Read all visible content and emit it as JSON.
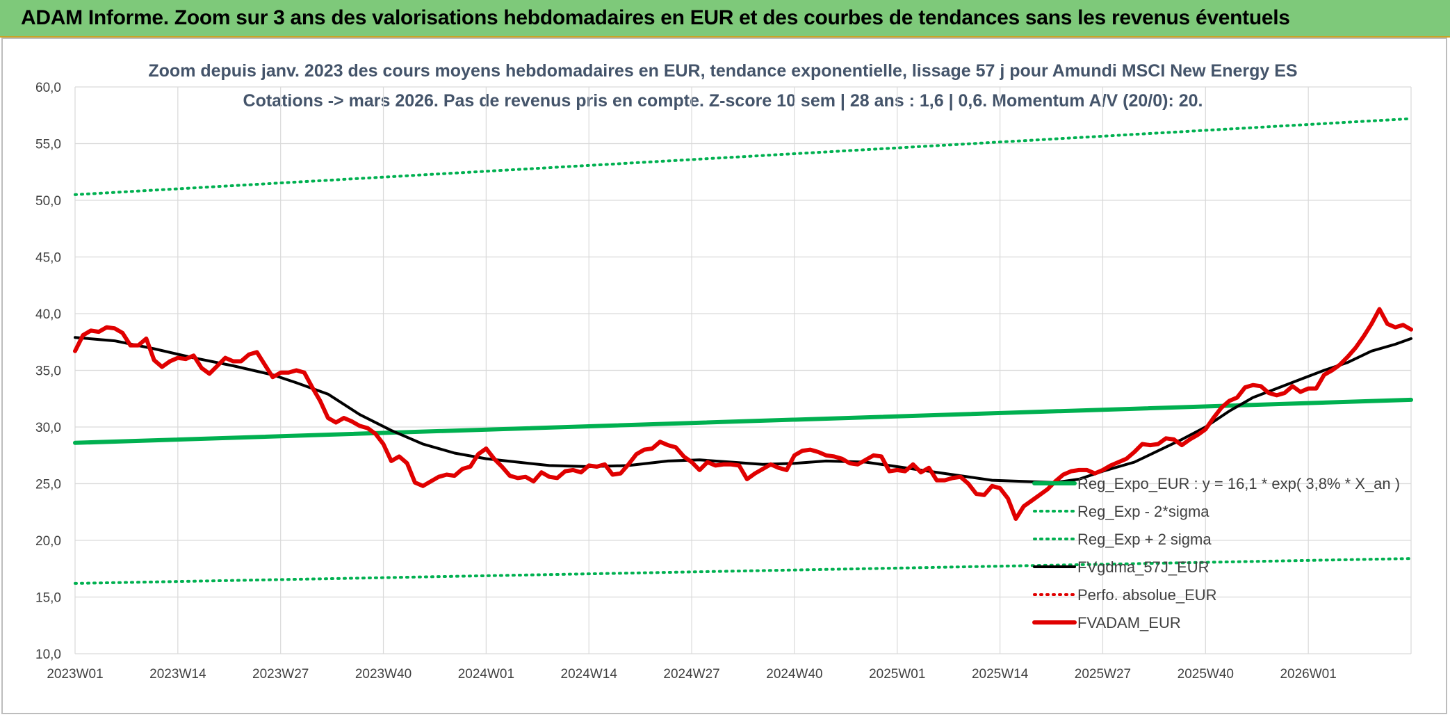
{
  "banner": {
    "title": "ADAM Informe. Zoom sur 3 ans des valorisations hebdomadaires en EUR et des courbes de tendances sans les revenus éventuels"
  },
  "chart_data": {
    "type": "line",
    "title": "Zoom depuis janv. 2023 des cours moyens hebdomadaires en EUR, tendance exponentielle, lissage 57 j pour Amundi MSCI New Energy ES",
    "subtitle": "Cotations -> mars 2026. Pas de revenus pris en compte. Z-score 10 sem | 28 ans : 1,6 | 0,6. Momentum A/V (20/0): 20.",
    "xlabel": "",
    "ylabel": "",
    "ylim": [
      10,
      60
    ],
    "yticks": [
      "10,0",
      "15,0",
      "20,0",
      "25,0",
      "30,0",
      "35,0",
      "40,0",
      "45,0",
      "50,0",
      "55,0",
      "60,0"
    ],
    "x_tick_labels": [
      "2023W01",
      "2023W14",
      "2023W27",
      "2023W40",
      "2024W01",
      "2024W14",
      "2024W27",
      "2024W40",
      "2025W01",
      "2025W14",
      "2025W27",
      "2025W40",
      "2026W01"
    ],
    "x_tick_index": [
      0,
      13,
      26,
      39,
      52,
      65,
      78,
      91,
      104,
      117,
      130,
      143,
      156
    ],
    "n_weeks": 170,
    "grid": true,
    "legend_position": "bottom-right",
    "series": [
      {
        "name": "Reg_Expo_EUR : y = 16,1 * exp( 3,8% *  X_an )",
        "color": "#00b050",
        "style": "solid-thick",
        "points": [
          [
            0,
            28.6
          ],
          [
            169,
            32.4
          ]
        ]
      },
      {
        "name": "Reg_Exp - 2*sigma",
        "color": "#00b050",
        "style": "dotted",
        "points": [
          [
            0,
            16.2
          ],
          [
            169,
            18.4
          ]
        ]
      },
      {
        "name": "Reg_Exp + 2 sigma",
        "color": "#00b050",
        "style": "dotted",
        "points": [
          [
            0,
            50.5
          ],
          [
            169,
            57.2
          ]
        ]
      },
      {
        "name": "FVgdma_57J_EUR",
        "color": "#000000",
        "style": "solid",
        "points": [
          [
            0,
            37.9
          ],
          [
            5,
            37.6
          ],
          [
            10,
            36.9
          ],
          [
            15,
            36.1
          ],
          [
            20,
            35.4
          ],
          [
            25,
            34.6
          ],
          [
            28,
            33.9
          ],
          [
            32,
            32.9
          ],
          [
            36,
            31.1
          ],
          [
            40,
            29.7
          ],
          [
            44,
            28.5
          ],
          [
            48,
            27.7
          ],
          [
            52,
            27.2
          ],
          [
            56,
            26.9
          ],
          [
            60,
            26.6
          ],
          [
            65,
            26.5
          ],
          [
            70,
            26.6
          ],
          [
            75,
            27.0
          ],
          [
            79,
            27.1
          ],
          [
            83,
            26.9
          ],
          [
            87,
            26.7
          ],
          [
            91,
            26.8
          ],
          [
            95,
            27.0
          ],
          [
            100,
            26.9
          ],
          [
            104,
            26.5
          ],
          [
            108,
            26.1
          ],
          [
            112,
            25.7
          ],
          [
            116,
            25.3
          ],
          [
            120,
            25.2
          ],
          [
            124,
            25.1
          ],
          [
            127,
            25.4
          ],
          [
            130,
            26.1
          ],
          [
            134,
            26.9
          ],
          [
            137,
            27.9
          ],
          [
            140,
            28.9
          ],
          [
            143,
            30.0
          ],
          [
            146,
            31.4
          ],
          [
            149,
            32.6
          ],
          [
            152,
            33.4
          ],
          [
            155,
            34.2
          ],
          [
            158,
            35.0
          ],
          [
            161,
            35.7
          ],
          [
            164,
            36.7
          ],
          [
            167,
            37.3
          ],
          [
            169,
            37.8
          ]
        ]
      },
      {
        "name": "Perfo. absolue_EUR",
        "color": "#e00000",
        "style": "dotted",
        "points": []
      },
      {
        "name": "FVADAM_EUR",
        "color": "#e00000",
        "style": "solid-thick",
        "points": [
          [
            0,
            36.7
          ],
          [
            1,
            38.1
          ],
          [
            2,
            38.5
          ],
          [
            3,
            38.4
          ],
          [
            4,
            38.8
          ],
          [
            5,
            38.7
          ],
          [
            6,
            38.3
          ],
          [
            7,
            37.2
          ],
          [
            8,
            37.2
          ],
          [
            9,
            37.8
          ],
          [
            10,
            35.9
          ],
          [
            11,
            35.3
          ],
          [
            12,
            35.8
          ],
          [
            13,
            36.1
          ],
          [
            14,
            36.0
          ],
          [
            15,
            36.3
          ],
          [
            16,
            35.2
          ],
          [
            17,
            34.7
          ],
          [
            18,
            35.4
          ],
          [
            19,
            36.1
          ],
          [
            20,
            35.8
          ],
          [
            21,
            35.8
          ],
          [
            22,
            36.4
          ],
          [
            23,
            36.6
          ],
          [
            24,
            35.5
          ],
          [
            25,
            34.4
          ],
          [
            26,
            34.8
          ],
          [
            27,
            34.8
          ],
          [
            28,
            35.0
          ],
          [
            29,
            34.8
          ],
          [
            30,
            33.5
          ],
          [
            31,
            32.3
          ],
          [
            32,
            30.8
          ],
          [
            33,
            30.4
          ],
          [
            34,
            30.8
          ],
          [
            35,
            30.5
          ],
          [
            36,
            30.1
          ],
          [
            37,
            29.9
          ],
          [
            38,
            29.4
          ],
          [
            39,
            28.5
          ],
          [
            40,
            27.0
          ],
          [
            41,
            27.4
          ],
          [
            42,
            26.8
          ],
          [
            43,
            25.1
          ],
          [
            44,
            24.8
          ],
          [
            45,
            25.2
          ],
          [
            46,
            25.6
          ],
          [
            47,
            25.8
          ],
          [
            48,
            25.7
          ],
          [
            49,
            26.3
          ],
          [
            50,
            26.5
          ],
          [
            51,
            27.6
          ],
          [
            52,
            28.1
          ],
          [
            53,
            27.2
          ],
          [
            54,
            26.5
          ],
          [
            55,
            25.7
          ],
          [
            56,
            25.5
          ],
          [
            57,
            25.6
          ],
          [
            58,
            25.2
          ],
          [
            59,
            26.0
          ],
          [
            60,
            25.6
          ],
          [
            61,
            25.5
          ],
          [
            62,
            26.1
          ],
          [
            63,
            26.2
          ],
          [
            64,
            26.0
          ],
          [
            65,
            26.6
          ],
          [
            66,
            26.5
          ],
          [
            67,
            26.7
          ],
          [
            68,
            25.8
          ],
          [
            69,
            25.9
          ],
          [
            70,
            26.7
          ],
          [
            71,
            27.6
          ],
          [
            72,
            28.0
          ],
          [
            73,
            28.1
          ],
          [
            74,
            28.7
          ],
          [
            75,
            28.4
          ],
          [
            76,
            28.2
          ],
          [
            77,
            27.4
          ],
          [
            78,
            26.9
          ],
          [
            79,
            26.2
          ],
          [
            80,
            26.9
          ],
          [
            81,
            26.6
          ],
          [
            82,
            26.7
          ],
          [
            83,
            26.7
          ],
          [
            84,
            26.6
          ],
          [
            85,
            25.4
          ],
          [
            86,
            25.9
          ],
          [
            87,
            26.3
          ],
          [
            88,
            26.7
          ],
          [
            89,
            26.4
          ],
          [
            90,
            26.2
          ],
          [
            91,
            27.5
          ],
          [
            92,
            27.9
          ],
          [
            93,
            28.0
          ],
          [
            94,
            27.8
          ],
          [
            95,
            27.5
          ],
          [
            96,
            27.4
          ],
          [
            97,
            27.2
          ],
          [
            98,
            26.8
          ],
          [
            99,
            26.7
          ],
          [
            100,
            27.1
          ],
          [
            101,
            27.5
          ],
          [
            102,
            27.4
          ],
          [
            103,
            26.1
          ],
          [
            104,
            26.2
          ],
          [
            105,
            26.1
          ],
          [
            106,
            26.7
          ],
          [
            107,
            26.0
          ],
          [
            108,
            26.4
          ],
          [
            109,
            25.3
          ],
          [
            110,
            25.3
          ],
          [
            111,
            25.5
          ],
          [
            112,
            25.6
          ],
          [
            113,
            25.0
          ],
          [
            114,
            24.1
          ],
          [
            115,
            24.0
          ],
          [
            116,
            24.8
          ],
          [
            117,
            24.6
          ],
          [
            118,
            23.7
          ],
          [
            119,
            21.9
          ],
          [
            120,
            23.0
          ],
          [
            121,
            23.5
          ],
          [
            122,
            24.0
          ],
          [
            123,
            24.5
          ],
          [
            124,
            25.2
          ],
          [
            125,
            25.8
          ],
          [
            126,
            26.1
          ],
          [
            127,
            26.2
          ],
          [
            128,
            26.2
          ],
          [
            129,
            25.9
          ],
          [
            130,
            26.2
          ],
          [
            131,
            26.6
          ],
          [
            132,
            26.9
          ],
          [
            133,
            27.2
          ],
          [
            134,
            27.8
          ],
          [
            135,
            28.5
          ],
          [
            136,
            28.4
          ],
          [
            137,
            28.5
          ],
          [
            138,
            29.0
          ],
          [
            139,
            28.9
          ],
          [
            140,
            28.4
          ],
          [
            141,
            28.9
          ],
          [
            142,
            29.3
          ],
          [
            143,
            29.8
          ],
          [
            144,
            30.8
          ],
          [
            145,
            31.7
          ],
          [
            146,
            32.3
          ],
          [
            147,
            32.6
          ],
          [
            148,
            33.5
          ],
          [
            149,
            33.7
          ],
          [
            150,
            33.6
          ],
          [
            151,
            33.0
          ],
          [
            152,
            32.8
          ],
          [
            153,
            33.0
          ],
          [
            154,
            33.6
          ],
          [
            155,
            33.1
          ],
          [
            156,
            33.4
          ],
          [
            157,
            33.4
          ],
          [
            158,
            34.6
          ],
          [
            159,
            35.0
          ],
          [
            160,
            35.5
          ],
          [
            161,
            36.2
          ],
          [
            162,
            37.0
          ],
          [
            163,
            38.0
          ],
          [
            164,
            39.1
          ],
          [
            165,
            40.4
          ],
          [
            166,
            39.1
          ],
          [
            167,
            38.8
          ],
          [
            168,
            39.0
          ],
          [
            169,
            38.6
          ]
        ]
      }
    ]
  }
}
